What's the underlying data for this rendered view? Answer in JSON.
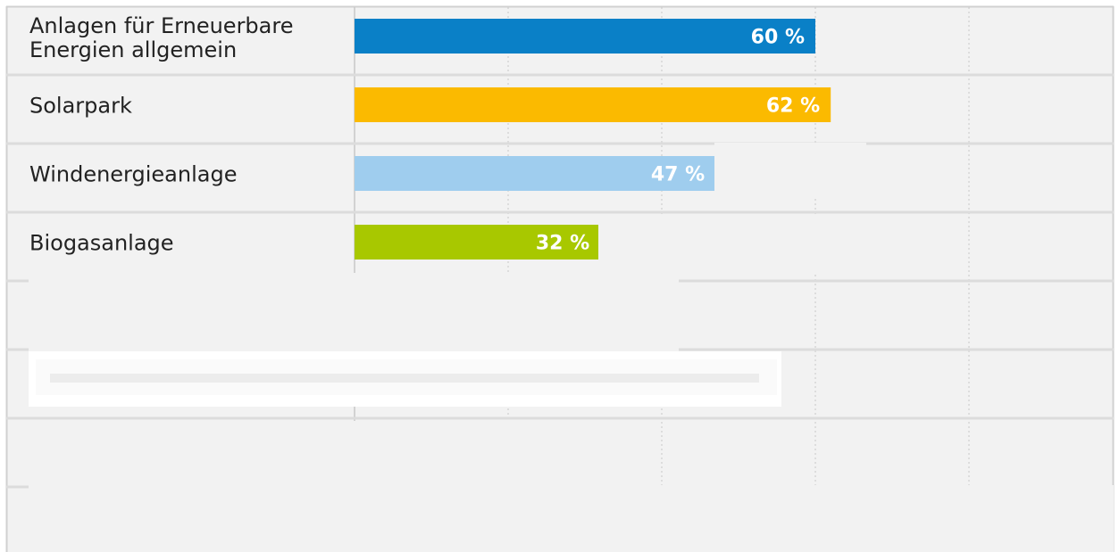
{
  "chart_data": {
    "type": "bar",
    "orientation": "horizontal",
    "categories": [
      [
        "Anlagen für Erneuerbare",
        "Energien allgemein"
      ],
      [
        "Solarpark"
      ],
      [
        "Windenergieanlage"
      ],
      [
        "Biogasanlage"
      ]
    ],
    "values": [
      60,
      62,
      47,
      32
    ],
    "value_labels": [
      "60 %",
      "62 %",
      "47 %",
      "32 %"
    ],
    "bar_colors": [
      "#0a80c7",
      "#fbba00",
      "#9fcdee",
      "#a8c800"
    ],
    "unit": "%",
    "xlim": [
      0,
      100
    ],
    "grid": true,
    "title": "",
    "xlabel": "",
    "ylabel": ""
  },
  "colors": {
    "background": "#f2f2f2",
    "row_divider": "#dcdcdc",
    "gridline": "#c8c8c8",
    "frame": "#cfcfcf",
    "text": "#222222",
    "value_text": "#ffffff"
  }
}
